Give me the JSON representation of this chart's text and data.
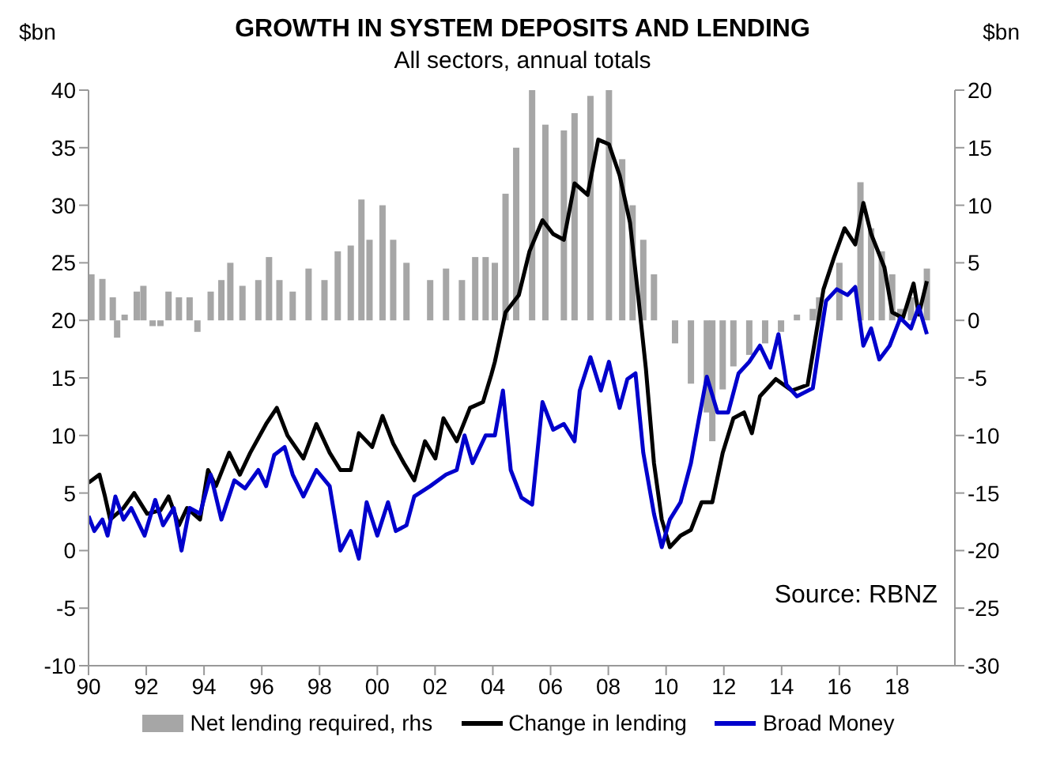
{
  "chart_data": {
    "type": "line",
    "title": "GROWTH IN SYSTEM DEPOSITS AND LENDING",
    "subtitle": "All sectors, annual totals",
    "ylabel": "$bn",
    "y2label": "$bn",
    "annotations": [
      "Source: RBNZ"
    ],
    "xlim": [
      1990,
      2020
    ],
    "xticks": [
      {
        "value": 1990,
        "label": "90"
      },
      {
        "value": 1992,
        "label": "92"
      },
      {
        "value": 1994,
        "label": "94"
      },
      {
        "value": 1996,
        "label": "96"
      },
      {
        "value": 1998,
        "label": "98"
      },
      {
        "value": 2000,
        "label": "00"
      },
      {
        "value": 2002,
        "label": "02"
      },
      {
        "value": 2004,
        "label": "04"
      },
      {
        "value": 2006,
        "label": "06"
      },
      {
        "value": 2008,
        "label": "08"
      },
      {
        "value": 2010,
        "label": "10"
      },
      {
        "value": 2012,
        "label": "12"
      },
      {
        "value": 2014,
        "label": "14"
      },
      {
        "value": 2016,
        "label": "16"
      },
      {
        "value": 2018,
        "label": "18"
      }
    ],
    "ylim": [
      -10,
      40
    ],
    "yticks": [
      -10,
      -5,
      0,
      5,
      10,
      15,
      20,
      25,
      30,
      35,
      40
    ],
    "y2lim": [
      -30,
      20
    ],
    "y2ticks": [
      -30,
      -25,
      -20,
      -15,
      -10,
      -5,
      0,
      5,
      10,
      15,
      20
    ],
    "grid": false,
    "legend": "bottom",
    "marker": "none",
    "line_style": "solid",
    "series": [
      {
        "name": "Net lending required, rhs",
        "type": "bar",
        "axis": "y2",
        "color": "#a6a6a6",
        "x": [
          1990.1,
          1990.48,
          1990.84,
          1990.99,
          1991.25,
          1991.67,
          1991.9,
          1992.22,
          1992.49,
          1992.77,
          1993.13,
          1993.5,
          1993.77,
          1994.23,
          1994.6,
          1994.91,
          1995.33,
          1995.88,
          1996.25,
          1996.61,
          1997.07,
          1997.62,
          1998.17,
          1998.63,
          1999.08,
          1999.45,
          1999.73,
          2000.18,
          2000.55,
          2001.01,
          2001.37,
          2001.83,
          2002.38,
          2002.93,
          2003.39,
          2003.75,
          2004.07,
          2004.44,
          2004.81,
          2005.36,
          2005.82,
          2006.46,
          2006.83,
          2007.38,
          2008.02,
          2008.48,
          2008.84,
          2009.21,
          2009.58,
          2009.94,
          2010.31,
          2010.86,
          2011.41,
          2011.6,
          2011.96,
          2012.33,
          2012.88,
          2013.43,
          2013.98,
          2014.53,
          2015.08,
          2015.3,
          2016.0,
          2016.73,
          2017.1,
          2017.47,
          2017.83,
          2018.11,
          2018.48,
          2019.03
        ],
        "values": [
          4,
          3.6,
          2,
          -1.5,
          0.5,
          2.5,
          3,
          -0.5,
          -0.5,
          2.5,
          2,
          2,
          -1,
          2.5,
          3.5,
          5,
          3,
          3.5,
          5.5,
          3.5,
          2.5,
          4.5,
          3.5,
          6,
          6.5,
          10.5,
          7,
          10,
          7,
          5,
          0,
          3.5,
          4.5,
          3.5,
          5.5,
          5.5,
          5,
          11,
          15,
          20,
          17,
          16.5,
          18,
          19.5,
          20,
          14,
          10,
          7,
          4,
          0,
          -2,
          -5.5,
          -8,
          -10.5,
          -6,
          -4,
          -3,
          -2,
          -1,
          0.5,
          1,
          2,
          5,
          12,
          8,
          6,
          4,
          1,
          2,
          4.5
        ]
      },
      {
        "name": "Change in lending",
        "color": "#000000",
        "x": [
          1990.0,
          1990.38,
          1990.57,
          1990.75,
          1991.21,
          1991.58,
          1992.03,
          1992.49,
          1992.77,
          1993.13,
          1993.41,
          1993.86,
          1994.14,
          1994.41,
          1994.87,
          1995.24,
          1995.6,
          1996.15,
          1996.52,
          1996.89,
          1997.44,
          1997.89,
          1998.35,
          1998.72,
          1999.08,
          1999.36,
          1999.82,
          2000.18,
          2000.55,
          2000.92,
          2001.28,
          2001.65,
          2002.01,
          2002.29,
          2002.75,
          2003.21,
          2003.66,
          2003.95,
          2004.07,
          2004.44,
          2004.9,
          2005.27,
          2005.72,
          2006.09,
          2006.46,
          2006.83,
          2007.28,
          2007.65,
          2008.02,
          2008.39,
          2008.75,
          2009.03,
          2009.3,
          2009.58,
          2009.85,
          2010.13,
          2010.5,
          2010.86,
          2011.23,
          2011.6,
          2011.96,
          2012.33,
          2012.7,
          2012.97,
          2013.25,
          2013.8,
          2014.35,
          2014.9,
          2015.45,
          2015.82,
          2016.18,
          2016.55,
          2016.83,
          2017.1,
          2017.56,
          2017.83,
          2018.2,
          2018.57,
          2018.75,
          2019.03
        ],
        "values": [
          5.9,
          6.6,
          4.7,
          2.7,
          3.7,
          5,
          3.2,
          3.5,
          4.7,
          2.2,
          3.7,
          2.7,
          7,
          5.6,
          8.5,
          6.6,
          8.5,
          11,
          12.4,
          10,
          8,
          11,
          8.5,
          7,
          7,
          10.2,
          9,
          11.7,
          9.3,
          7.6,
          6.1,
          9.5,
          8,
          11.5,
          9.5,
          12.4,
          12.9,
          15.3,
          16.4,
          20.7,
          22.2,
          26,
          28.7,
          27.5,
          27,
          31.9,
          30.9,
          35.7,
          35.3,
          32.6,
          28.5,
          22.2,
          15.8,
          7.6,
          2.7,
          0.3,
          1.3,
          1.8,
          4.2,
          4.2,
          8.5,
          11.5,
          12,
          10.2,
          13.4,
          14.9,
          13.9,
          14.4,
          22.7,
          25.5,
          28,
          26.6,
          30.2,
          27.5,
          24.6,
          20.7,
          20.2,
          23.2,
          20.5,
          23.4
        ]
      },
      {
        "name": "Broad Money",
        "color": "#0000cc",
        "x": [
          1990.0,
          1990.2,
          1990.48,
          1990.66,
          1990.93,
          1991.21,
          1991.48,
          1991.94,
          1992.31,
          1992.58,
          1992.95,
          1993.22,
          1993.5,
          1993.86,
          1994.23,
          1994.6,
          1995.05,
          1995.42,
          1995.88,
          1996.15,
          1996.43,
          1996.79,
          1997.07,
          1997.44,
          1997.89,
          1998.35,
          1998.72,
          1999.08,
          1999.36,
          1999.63,
          2000.0,
          2000.37,
          2000.64,
          2001.01,
          2001.28,
          2001.83,
          2002.38,
          2002.75,
          2003.02,
          2003.3,
          2003.75,
          2004.07,
          2004.35,
          2004.62,
          2004.99,
          2005.36,
          2005.72,
          2006.09,
          2006.46,
          2006.83,
          2007.01,
          2007.38,
          2007.74,
          2008.02,
          2008.39,
          2008.66,
          2008.94,
          2009.21,
          2009.58,
          2009.85,
          2010.13,
          2010.5,
          2010.86,
          2011.14,
          2011.41,
          2011.78,
          2012.15,
          2012.51,
          2012.88,
          2013.25,
          2013.61,
          2013.89,
          2014.17,
          2014.53,
          2015.08,
          2015.36,
          2015.54,
          2015.91,
          2016.28,
          2016.55,
          2016.83,
          2017.1,
          2017.38,
          2017.74,
          2018.11,
          2018.48,
          2018.75,
          2019.03
        ],
        "values": [
          3,
          1.7,
          2.7,
          1.3,
          4.7,
          2.7,
          3.7,
          1.3,
          4.4,
          2.2,
          3.7,
          0,
          3.7,
          3.2,
          6.6,
          2.7,
          6.1,
          5.4,
          7,
          5.6,
          8.3,
          9,
          6.6,
          4.7,
          7,
          5.6,
          0,
          1.7,
          -0.7,
          4.2,
          1.3,
          4.2,
          1.7,
          2.2,
          4.7,
          5.6,
          6.6,
          7,
          10,
          7.6,
          10,
          10,
          13.9,
          7,
          4.6,
          4,
          12.9,
          10.5,
          11,
          9.5,
          13.9,
          16.8,
          13.9,
          16.4,
          12.4,
          14.9,
          15.4,
          8.5,
          3.2,
          0.3,
          2.7,
          4.2,
          7.6,
          11.5,
          15.1,
          12,
          12,
          15.4,
          16.4,
          17.8,
          15.9,
          18.8,
          14.4,
          13.4,
          14.1,
          18.8,
          21.7,
          22.7,
          22.2,
          22.9,
          17.8,
          19.3,
          16.6,
          17.8,
          20.2,
          19.3,
          21.2,
          18.8
        ]
      }
    ]
  }
}
